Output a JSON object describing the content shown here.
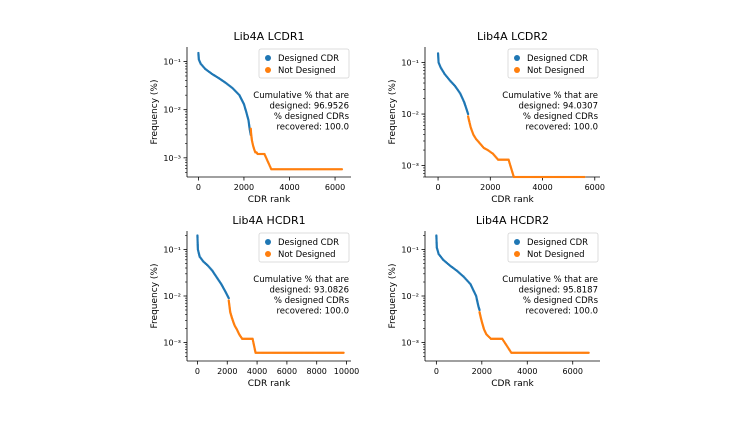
{
  "colors": {
    "designed": "#1f77b4",
    "not_designed": "#ff7f0e"
  },
  "chart_data": [
    {
      "type": "scatter",
      "title": "Lib4A LCDR1",
      "xlabel": "CDR rank",
      "ylabel": "Frequency (%)",
      "xlim": [
        -500,
        6700
      ],
      "ylim_log": [
        0.0004,
        0.2
      ],
      "xticks": [
        0,
        2000,
        4000,
        6000
      ],
      "xtick_labels": [
        "0",
        "2000",
        "4000",
        "6000"
      ],
      "yticks": [
        0.001,
        0.01,
        0.1
      ],
      "ytick_labels": [
        "10⁻³",
        "10⁻²",
        "10⁻¹"
      ],
      "legend": [
        "Designed CDR",
        "Not Designed"
      ],
      "legend_position": "top-right",
      "annotation": [
        "Cumulative % that are",
        "designed: 96.9526",
        "% designed CDRs",
        "recovered: 100.0"
      ],
      "series": [
        {
          "name": "Designed CDR",
          "points": [
            [
              0,
              0.15
            ],
            [
              20,
              0.11
            ],
            [
              100,
              0.09
            ],
            [
              300,
              0.07
            ],
            [
              600,
              0.055
            ],
            [
              900,
              0.045
            ],
            [
              1200,
              0.036
            ],
            [
              1500,
              0.028
            ],
            [
              1800,
              0.02
            ],
            [
              2000,
              0.013
            ],
            [
              2100,
              0.009
            ],
            [
              2200,
              0.006
            ],
            [
              2250,
              0.004
            ],
            [
              2300,
              0.003
            ]
          ]
        },
        {
          "name": "Not Designed",
          "points": [
            [
              2300,
              0.004
            ],
            [
              2320,
              0.003
            ],
            [
              2350,
              0.0023
            ],
            [
              2400,
              0.0018
            ],
            [
              2450,
              0.0015
            ],
            [
              2500,
              0.0013
            ],
            [
              2550,
              0.0013
            ],
            [
              2600,
              0.0012
            ],
            [
              2700,
              0.0012
            ],
            [
              2800,
              0.0012
            ],
            [
              2900,
              0.0012
            ],
            [
              3200,
              0.00058
            ],
            [
              6300,
              0.00058
            ]
          ]
        }
      ]
    },
    {
      "type": "scatter",
      "title": "Lib4A LCDR2",
      "xlabel": "CDR rank",
      "ylabel": "Frequency (%)",
      "xlim": [
        -500,
        6200
      ],
      "ylim_log": [
        0.0006,
        0.2
      ],
      "xticks": [
        0,
        2000,
        4000,
        6000
      ],
      "xtick_labels": [
        "0",
        "2000",
        "4000",
        "6000"
      ],
      "yticks": [
        0.001,
        0.01,
        0.1
      ],
      "ytick_labels": [
        "10⁻³",
        "10⁻²",
        "10⁻¹"
      ],
      "legend": [
        "Designed CDR",
        "Not Designed"
      ],
      "legend_position": "top-right",
      "annotation": [
        "Cumulative % that are",
        "designed: 94.0307",
        "% designed CDRs",
        "recovered: 100.0"
      ],
      "series": [
        {
          "name": "Designed CDR",
          "points": [
            [
              0,
              0.15
            ],
            [
              20,
              0.1
            ],
            [
              100,
              0.08
            ],
            [
              250,
              0.06
            ],
            [
              450,
              0.045
            ],
            [
              650,
              0.035
            ],
            [
              850,
              0.025
            ],
            [
              1000,
              0.017
            ],
            [
              1100,
              0.012
            ],
            [
              1150,
              0.01
            ]
          ]
        },
        {
          "name": "Not Designed",
          "points": [
            [
              1150,
              0.009
            ],
            [
              1200,
              0.007
            ],
            [
              1250,
              0.0055
            ],
            [
              1350,
              0.004
            ],
            [
              1450,
              0.0033
            ],
            [
              1600,
              0.0027
            ],
            [
              1750,
              0.0022
            ],
            [
              1900,
              0.002
            ],
            [
              2100,
              0.0017
            ],
            [
              2300,
              0.0013
            ],
            [
              2700,
              0.0013
            ],
            [
              2900,
              0.0006
            ],
            [
              5600,
              0.0006
            ]
          ]
        }
      ]
    },
    {
      "type": "scatter",
      "title": "Lib4A HCDR1",
      "xlabel": "CDR rank",
      "ylabel": "Frequency (%)",
      "xlim": [
        -700,
        10300
      ],
      "ylim_log": [
        0.0004,
        0.25
      ],
      "xticks": [
        0,
        2000,
        4000,
        6000,
        8000,
        10000
      ],
      "xtick_labels": [
        "0",
        "2000",
        "4000",
        "6000",
        "8000",
        "10000"
      ],
      "yticks": [
        0.001,
        0.01,
        0.1
      ],
      "ytick_labels": [
        "10⁻³",
        "10⁻²",
        "10⁻¹"
      ],
      "legend": [
        "Designed CDR",
        "Not Designed"
      ],
      "legend_position": "top-right",
      "annotation": [
        "Cumulative % that are",
        "designed: 93.0826",
        "% designed CDRs",
        "recovered: 100.0"
      ],
      "series": [
        {
          "name": "Designed CDR",
          "points": [
            [
              0,
              0.2
            ],
            [
              30,
              0.1
            ],
            [
              150,
              0.07
            ],
            [
              400,
              0.055
            ],
            [
              700,
              0.045
            ],
            [
              1000,
              0.035
            ],
            [
              1300,
              0.025
            ],
            [
              1600,
              0.018
            ],
            [
              1900,
              0.012
            ],
            [
              2100,
              0.009
            ]
          ]
        },
        {
          "name": "Not Designed",
          "points": [
            [
              2100,
              0.008
            ],
            [
              2150,
              0.006
            ],
            [
              2200,
              0.0045
            ],
            [
              2300,
              0.0035
            ],
            [
              2400,
              0.0028
            ],
            [
              2500,
              0.0023
            ],
            [
              2650,
              0.0019
            ],
            [
              2800,
              0.0015
            ],
            [
              3000,
              0.0012
            ],
            [
              3700,
              0.0012
            ],
            [
              3900,
              0.0006
            ],
            [
              9800,
              0.0006
            ]
          ]
        }
      ]
    },
    {
      "type": "scatter",
      "title": "Lib4A HCDR2",
      "xlabel": "CDR rank",
      "ylabel": "Frequency (%)",
      "xlim": [
        -500,
        7200
      ],
      "ylim_log": [
        0.0004,
        0.25
      ],
      "xticks": [
        0,
        2000,
        4000,
        6000
      ],
      "xtick_labels": [
        "0",
        "2000",
        "4000",
        "6000"
      ],
      "yticks": [
        0.001,
        0.01,
        0.1
      ],
      "ytick_labels": [
        "10⁻³",
        "10⁻²",
        "10⁻¹"
      ],
      "legend": [
        "Designed CDR",
        "Not Designed"
      ],
      "legend_position": "top-right",
      "annotation": [
        "Cumulative % that are",
        "designed: 95.8187",
        "% designed CDRs",
        "recovered: 100.0"
      ],
      "series": [
        {
          "name": "Designed CDR",
          "points": [
            [
              0,
              0.2
            ],
            [
              20,
              0.11
            ],
            [
              100,
              0.08
            ],
            [
              300,
              0.06
            ],
            [
              600,
              0.045
            ],
            [
              900,
              0.035
            ],
            [
              1200,
              0.026
            ],
            [
              1500,
              0.018
            ],
            [
              1750,
              0.01
            ],
            [
              1850,
              0.006
            ],
            [
              1900,
              0.005
            ]
          ]
        },
        {
          "name": "Not Designed",
          "points": [
            [
              1900,
              0.0045
            ],
            [
              1950,
              0.0035
            ],
            [
              2000,
              0.0028
            ],
            [
              2050,
              0.0023
            ],
            [
              2100,
              0.0019
            ],
            [
              2200,
              0.0015
            ],
            [
              2400,
              0.0012
            ],
            [
              2900,
              0.0012
            ],
            [
              3300,
              0.0006
            ],
            [
              6700,
              0.0006
            ]
          ]
        }
      ]
    }
  ]
}
